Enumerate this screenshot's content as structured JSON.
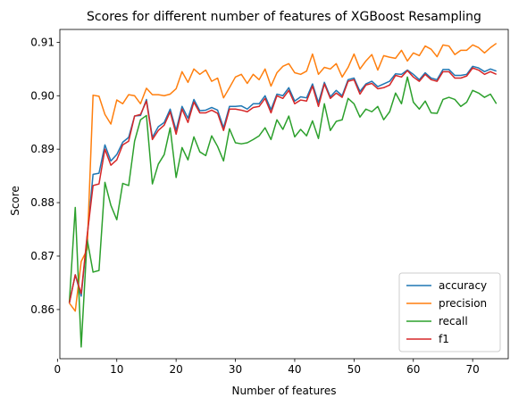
{
  "chart_data": {
    "type": "line",
    "title": "Scores for different number of features of XGBoost Resampling",
    "xlabel": "Number of features",
    "ylabel": "Score",
    "xlim": [
      0.4,
      76
    ],
    "ylim": [
      0.8508,
      0.9124
    ],
    "xticks": [
      0,
      10,
      20,
      30,
      40,
      50,
      60,
      70
    ],
    "yticks": [
      0.86,
      0.87,
      0.88,
      0.89,
      0.9,
      0.91
    ],
    "ytick_labels": [
      "0.86",
      "0.87",
      "0.88",
      "0.89",
      "0.90",
      "0.91"
    ],
    "grid": false,
    "legend_position": "lower-right",
    "x": [
      2,
      3,
      4,
      5,
      6,
      7,
      8,
      9,
      10,
      11,
      12,
      13,
      14,
      15,
      16,
      17,
      18,
      19,
      20,
      21,
      22,
      23,
      24,
      25,
      26,
      27,
      28,
      29,
      30,
      31,
      32,
      33,
      34,
      35,
      36,
      37,
      38,
      39,
      40,
      41,
      42,
      43,
      44,
      45,
      46,
      47,
      48,
      49,
      50,
      51,
      52,
      53,
      54,
      55,
      56,
      57,
      58,
      59,
      60,
      61,
      62,
      63,
      64,
      65,
      66,
      67,
      68,
      69,
      70,
      71,
      72,
      73,
      74
    ],
    "series": [
      {
        "name": "accuracy",
        "color": "#1f77b4",
        "values": [
          0.8612,
          0.8665,
          0.8625,
          0.8735,
          0.8853,
          0.8855,
          0.8908,
          0.8878,
          0.889,
          0.8913,
          0.8922,
          0.8962,
          0.8963,
          0.8993,
          0.8922,
          0.8942,
          0.895,
          0.8975,
          0.8935,
          0.898,
          0.8958,
          0.8993,
          0.8972,
          0.8973,
          0.8978,
          0.8973,
          0.894,
          0.898,
          0.898,
          0.8981,
          0.8975,
          0.8985,
          0.8985,
          0.9,
          0.8974,
          0.9003,
          0.9,
          0.9015,
          0.899,
          0.8998,
          0.8996,
          0.9022,
          0.8987,
          0.9025,
          0.8998,
          0.901,
          0.9,
          0.903,
          0.9033,
          0.9008,
          0.9022,
          0.9027,
          0.9017,
          0.9022,
          0.9027,
          0.9041,
          0.904,
          0.9048,
          0.904,
          0.903,
          0.9043,
          0.9033,
          0.903,
          0.9049,
          0.9049,
          0.9038,
          0.9038,
          0.904,
          0.9055,
          0.9052,
          0.9045,
          0.905,
          0.9046
        ]
      },
      {
        "name": "precision",
        "color": "#ff7f0e",
        "values": [
          0.8612,
          0.8597,
          0.869,
          0.8712,
          0.9001,
          0.8999,
          0.8965,
          0.8947,
          0.8992,
          0.8985,
          0.9002,
          0.9,
          0.8985,
          0.9014,
          0.9002,
          0.9002,
          0.9,
          0.9003,
          0.9013,
          0.9045,
          0.9025,
          0.905,
          0.904,
          0.9048,
          0.9027,
          0.9033,
          0.8996,
          0.9015,
          0.9035,
          0.904,
          0.9023,
          0.904,
          0.903,
          0.905,
          0.9018,
          0.9043,
          0.9055,
          0.906,
          0.9043,
          0.904,
          0.9046,
          0.9078,
          0.904,
          0.9053,
          0.905,
          0.906,
          0.9035,
          0.9053,
          0.9078,
          0.905,
          0.9065,
          0.9077,
          0.9048,
          0.9075,
          0.9072,
          0.907,
          0.9085,
          0.9065,
          0.908,
          0.9075,
          0.9093,
          0.9087,
          0.9073,
          0.9095,
          0.9093,
          0.9077,
          0.9085,
          0.9085,
          0.9095,
          0.909,
          0.908,
          0.909,
          0.9098
        ]
      },
      {
        "name": "recall",
        "color": "#2ca02c",
        "values": [
          0.8613,
          0.8791,
          0.853,
          0.8732,
          0.867,
          0.8673,
          0.8838,
          0.8795,
          0.8768,
          0.8836,
          0.8832,
          0.8915,
          0.8955,
          0.8963,
          0.8835,
          0.8872,
          0.889,
          0.894,
          0.8847,
          0.8903,
          0.888,
          0.8923,
          0.8895,
          0.8888,
          0.8925,
          0.8905,
          0.8878,
          0.8938,
          0.8912,
          0.891,
          0.8912,
          0.8918,
          0.8925,
          0.894,
          0.8918,
          0.8955,
          0.8937,
          0.8962,
          0.8923,
          0.8937,
          0.8925,
          0.8953,
          0.892,
          0.8985,
          0.8935,
          0.8952,
          0.8955,
          0.8995,
          0.8985,
          0.896,
          0.8975,
          0.897,
          0.898,
          0.8955,
          0.897,
          0.9005,
          0.8985,
          0.9035,
          0.8988,
          0.8975,
          0.899,
          0.8968,
          0.8967,
          0.8993,
          0.8997,
          0.8993,
          0.898,
          0.8988,
          0.901,
          0.9005,
          0.8997,
          0.9003,
          0.8985
        ]
      },
      {
        "name": "f1",
        "color": "#d62728",
        "values": [
          0.8612,
          0.8665,
          0.863,
          0.8738,
          0.8832,
          0.8835,
          0.89,
          0.887,
          0.888,
          0.8908,
          0.8915,
          0.8962,
          0.8965,
          0.899,
          0.8918,
          0.8935,
          0.8945,
          0.897,
          0.8928,
          0.8975,
          0.895,
          0.8988,
          0.8968,
          0.8968,
          0.8973,
          0.8967,
          0.8935,
          0.8975,
          0.8975,
          0.8973,
          0.897,
          0.8978,
          0.898,
          0.8995,
          0.8968,
          0.9,
          0.8995,
          0.901,
          0.8985,
          0.8992,
          0.899,
          0.9018,
          0.898,
          0.9022,
          0.8995,
          0.9005,
          0.8997,
          0.9027,
          0.903,
          0.9003,
          0.902,
          0.9023,
          0.9013,
          0.9015,
          0.902,
          0.9038,
          0.9035,
          0.9047,
          0.9035,
          0.9027,
          0.904,
          0.903,
          0.9027,
          0.9045,
          0.9045,
          0.9033,
          0.9033,
          0.9037,
          0.9052,
          0.9048,
          0.904,
          0.9045,
          0.904
        ]
      }
    ]
  }
}
